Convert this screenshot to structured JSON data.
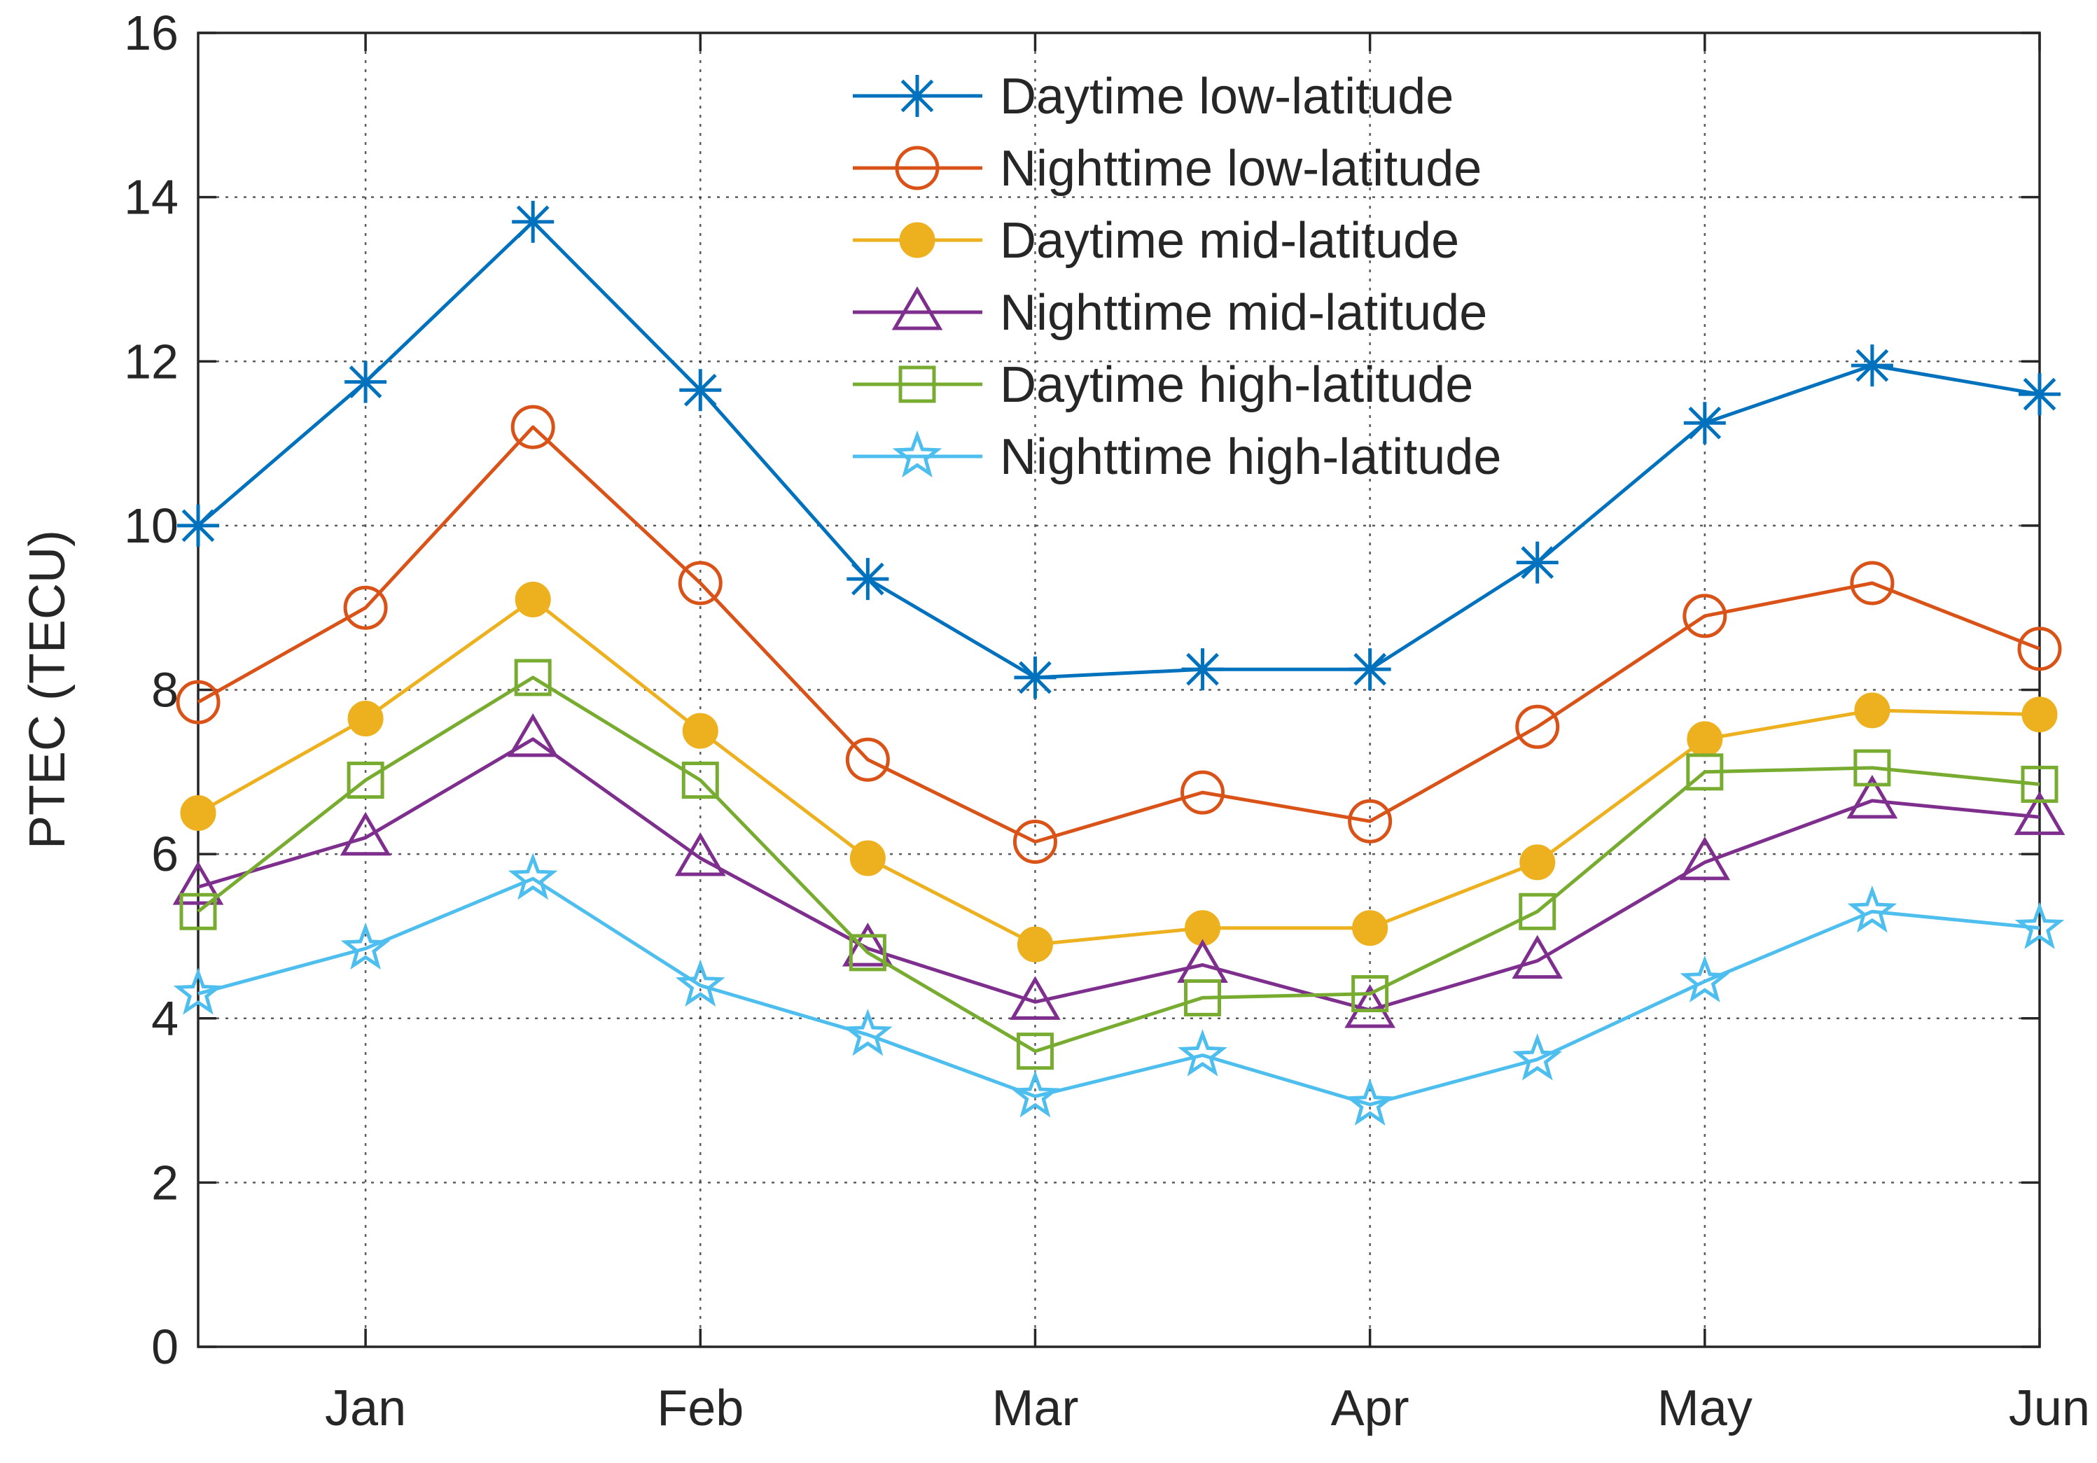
{
  "chart_data": {
    "type": "line",
    "title": "",
    "xlabel": "",
    "ylabel": "PTEC (TECU)",
    "ylim": [
      0,
      16
    ],
    "yticks": [
      0,
      2,
      4,
      6,
      8,
      10,
      12,
      14,
      16
    ],
    "xlim": [
      0,
      11
    ],
    "x": [
      0,
      1,
      2,
      3,
      4,
      5,
      6,
      7,
      8,
      9,
      10,
      11
    ],
    "xtick_positions": [
      1,
      3,
      5,
      7,
      9,
      11
    ],
    "xtick_labels": [
      "Jan",
      "Feb",
      "Mar",
      "Apr",
      "May",
      "Jun"
    ],
    "grid": true,
    "legend_position": "top-center",
    "series": [
      {
        "name": "Daytime low-latitude",
        "color": "#0072BD",
        "marker": "asterisk",
        "values": [
          10.0,
          11.75,
          13.7,
          11.65,
          9.35,
          8.15,
          8.25,
          8.25,
          9.55,
          11.25,
          11.95,
          11.6
        ]
      },
      {
        "name": "Nighttime low-latitude",
        "color": "#D95319",
        "marker": "circle",
        "values": [
          7.85,
          9.0,
          11.2,
          9.3,
          7.15,
          6.15,
          6.75,
          6.4,
          7.55,
          8.9,
          9.3,
          8.5
        ]
      },
      {
        "name": "Daytime mid-latitude",
        "color": "#EDB120",
        "marker": "filled-circle",
        "values": [
          6.5,
          7.65,
          9.1,
          7.5,
          5.95,
          4.9,
          5.1,
          5.1,
          5.9,
          7.4,
          7.75,
          7.7
        ]
      },
      {
        "name": "Nighttime mid-latitude",
        "color": "#7E2F8E",
        "marker": "triangle",
        "values": [
          5.6,
          6.2,
          7.4,
          5.95,
          4.85,
          4.2,
          4.65,
          4.1,
          4.7,
          5.9,
          6.65,
          6.45
        ]
      },
      {
        "name": "Daytime high-latitude",
        "color": "#77AC30",
        "marker": "square",
        "values": [
          5.3,
          6.9,
          8.15,
          6.9,
          4.8,
          3.6,
          4.25,
          4.3,
          5.3,
          7.0,
          7.05,
          6.85
        ]
      },
      {
        "name": "Nighttime high-latitude",
        "color": "#4DBEEE",
        "marker": "star",
        "values": [
          4.3,
          4.85,
          5.7,
          4.4,
          3.8,
          3.05,
          3.55,
          2.95,
          3.5,
          4.45,
          5.3,
          5.1
        ]
      }
    ]
  }
}
